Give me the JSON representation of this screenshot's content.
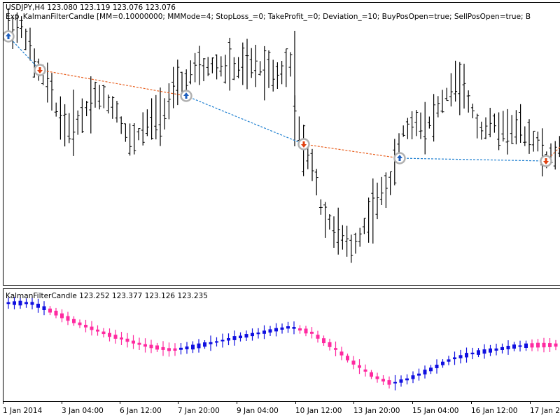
{
  "chart_header": {
    "symbol_line": "USDJPY,H4  123.080 123.119 123.076 123.076",
    "expert_line": "Exp_KalmanFilterCandle [MM=0.10000000; MMMode=4; StopLoss_=0; TakeProfit_=0; Deviation_=10; BuyPosOpen=true; SellPosOpen=true; B"
  },
  "indicator_header": {
    "label": "KalmanFilterCandle 123.252 123.377 123.126 123.235"
  },
  "colors": {
    "bull": "#1010e0",
    "bear": "#ff2aa0",
    "buy_arrow": "#1e5fbf",
    "sell_arrow": "#e04010",
    "buy_line": "#1e7fd0",
    "sell_line": "#e86020",
    "signal_ring": "#b0b0b0"
  },
  "time_axis": {
    "labels": [
      "1 Jan 2014",
      "3 Jan 04:00",
      "6 Jan 12:00",
      "7 Jan 20:00",
      "9 Jan 04:00",
      "10 Jan 12:00",
      "13 Jan 20:00",
      "15 Jan 04:00",
      "16 Jan 12:00",
      "17 Jan 20:00"
    ]
  },
  "trade_signals": [
    {
      "type": "buy"
    },
    {
      "type": "sell"
    },
    {
      "type": "buy"
    },
    {
      "type": "sell"
    },
    {
      "type": "buy"
    },
    {
      "type": "sell"
    }
  ]
}
